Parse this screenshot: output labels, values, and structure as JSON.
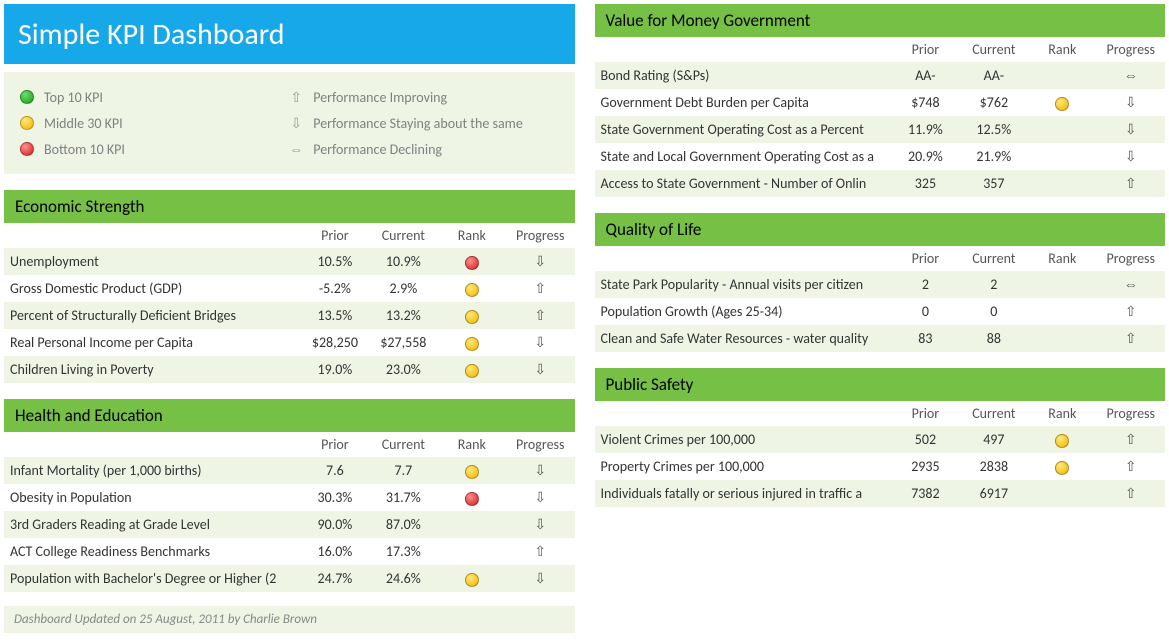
{
  "title": "Simple KPI Dashboard",
  "footer": "Dashboard Updated on 25 August, 2011 by Charlie Brown",
  "colors": {
    "header_bg": "#16a8e8",
    "section_bg": "#76c046",
    "alt_row_bg": "#eef5e5",
    "green": "#1a9a1a",
    "yellow": "#f0b400",
    "red": "#d21d1d"
  },
  "legend": {
    "ranks": [
      {
        "label": "Top 10 KPI",
        "color": "green"
      },
      {
        "label": "Middle 30 KPI",
        "color": "yellow"
      },
      {
        "label": "Bottom 10 KPI",
        "color": "red"
      }
    ],
    "progress": [
      {
        "label": "Performance Improving",
        "glyph": "⇧"
      },
      {
        "label": "Performance Staying about the same",
        "glyph": "⇩"
      },
      {
        "label": "Performance Declining",
        "glyph": "⇔"
      }
    ]
  },
  "columns": {
    "metric": "",
    "prior": "Prior",
    "current": "Current",
    "rank": "Rank",
    "progress": "Progress"
  },
  "sections_left": [
    {
      "title": "Economic Strength",
      "rows": [
        {
          "metric": "Unemployment",
          "prior": "10.5%",
          "current": "10.9%",
          "rank": "red",
          "progress": "⇩"
        },
        {
          "metric": "Gross Domestic Product (GDP)",
          "prior": "-5.2%",
          "current": "2.9%",
          "rank": "yellow",
          "progress": "⇧"
        },
        {
          "metric": "Percent of Structurally Deficient Bridges",
          "prior": "13.5%",
          "current": "13.2%",
          "rank": "yellow",
          "progress": "⇧"
        },
        {
          "metric": "Real Personal Income per Capita",
          "prior": "$28,250",
          "current": "$27,558",
          "rank": "yellow",
          "progress": "⇩"
        },
        {
          "metric": "Children Living in Poverty",
          "prior": "19.0%",
          "current": "23.0%",
          "rank": "yellow",
          "progress": "⇩"
        }
      ]
    },
    {
      "title": "Health and Education",
      "rows": [
        {
          "metric": "Infant Mortality (per 1,000 births)",
          "prior": "7.6",
          "current": "7.7",
          "rank": "yellow",
          "progress": "⇩"
        },
        {
          "metric": "Obesity in Population",
          "prior": "30.3%",
          "current": "31.7%",
          "rank": "red",
          "progress": "⇩"
        },
        {
          "metric": "3rd Graders Reading at Grade Level",
          "prior": "90.0%",
          "current": "87.0%",
          "rank": "",
          "progress": "⇩"
        },
        {
          "metric": "ACT College Readiness Benchmarks",
          "prior": "16.0%",
          "current": "17.3%",
          "rank": "",
          "progress": "⇧"
        },
        {
          "metric": "Population with Bachelor's Degree or Higher (2",
          "prior": "24.7%",
          "current": "24.6%",
          "rank": "yellow",
          "progress": "⇩"
        }
      ]
    }
  ],
  "sections_right": [
    {
      "title": "Value for Money Government",
      "rows": [
        {
          "metric": "Bond Rating (S&Ps)",
          "prior": "AA-",
          "current": "AA-",
          "rank": "",
          "progress": "⇔"
        },
        {
          "metric": "Government Debt Burden per Capita",
          "prior": "$748",
          "current": "$762",
          "rank": "yellow",
          "progress": "⇩"
        },
        {
          "metric": "State Government Operating Cost as a Percent",
          "prior": "11.9%",
          "current": "12.5%",
          "rank": "",
          "progress": "⇩"
        },
        {
          "metric": "State and Local Government Operating Cost as a",
          "prior": "20.9%",
          "current": "21.9%",
          "rank": "",
          "progress": "⇩"
        },
        {
          "metric": "Access to State Government - Number of Onlin",
          "prior": "325",
          "current": "357",
          "rank": "",
          "progress": "⇧"
        }
      ]
    },
    {
      "title": "Quality of Life",
      "rows": [
        {
          "metric": "State Park Popularity - Annual visits per citizen",
          "prior": "2",
          "current": "2",
          "rank": "",
          "progress": "⇔"
        },
        {
          "metric": "Population Growth (Ages 25-34)",
          "prior": "0",
          "current": "0",
          "rank": "",
          "progress": "⇧"
        },
        {
          "metric": "Clean and Safe Water Resources - water quality",
          "prior": "83",
          "current": "88",
          "rank": "",
          "progress": "⇧"
        }
      ]
    },
    {
      "title": "Public Safety",
      "rows": [
        {
          "metric": "Violent Crimes per 100,000",
          "prior": "502",
          "current": "497",
          "rank": "yellow",
          "progress": "⇧"
        },
        {
          "metric": "Property Crimes per 100,000",
          "prior": "2935",
          "current": "2838",
          "rank": "yellow",
          "progress": "⇧"
        },
        {
          "metric": "Individuals fatally or serious injured in traffic a",
          "prior": "7382",
          "current": "6917",
          "rank": "",
          "progress": "⇧"
        }
      ]
    }
  ]
}
